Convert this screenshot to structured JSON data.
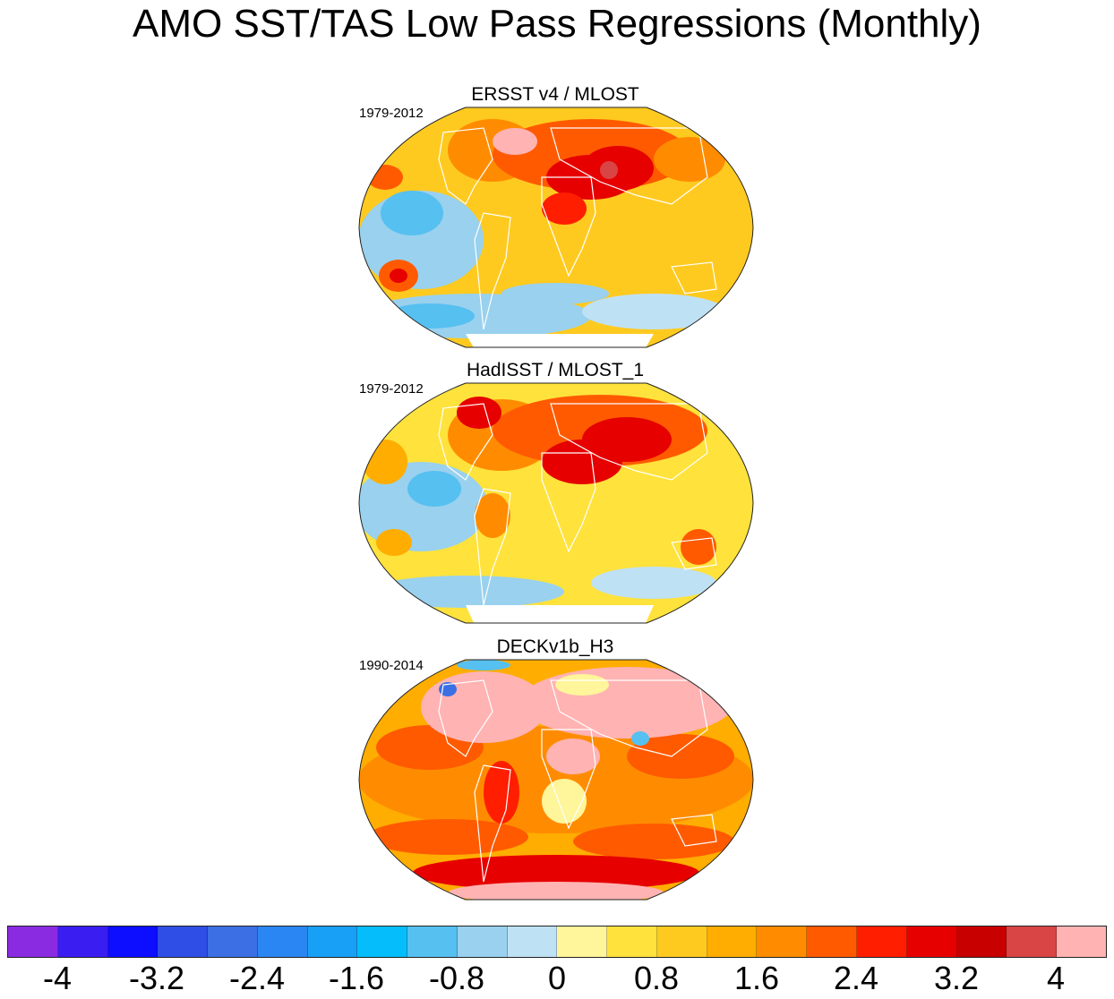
{
  "title": "AMO SST/TAS Low Pass Regressions (Monthly)",
  "colors": {
    "land_outline": "#ffffff",
    "map_border": "#222222",
    "colorbar_fills": [
      "#8a2be2",
      "#3a1df0",
      "#0d0dff",
      "#2f4ee6",
      "#3b6fe3",
      "#2a86f2",
      "#18a0f6",
      "#05bdfb",
      "#56c0f0",
      "#99d1ee",
      "#bfe1f4",
      "#fff59a",
      "#ffe23c",
      "#ffca20",
      "#ffad00",
      "#ff8c00",
      "#ff5a00",
      "#ff1e00",
      "#e60000",
      "#c80000",
      "#d94444",
      "#ffb3b3"
    ]
  },
  "colorbar": {
    "labels": [
      "-4",
      "-3.2",
      "-2.4",
      "-1.6",
      "-0.8",
      "0",
      "0.8",
      "1.6",
      "2.4",
      "3.2",
      "4"
    ]
  },
  "panels": [
    {
      "title": "ERSST v4 / MLOST",
      "period": "1979-2012"
    },
    {
      "title": "HadISST / MLOST_1",
      "period": "1979-2012"
    },
    {
      "title": "DECKv1b_H3",
      "period": "1990-2014"
    }
  ]
}
